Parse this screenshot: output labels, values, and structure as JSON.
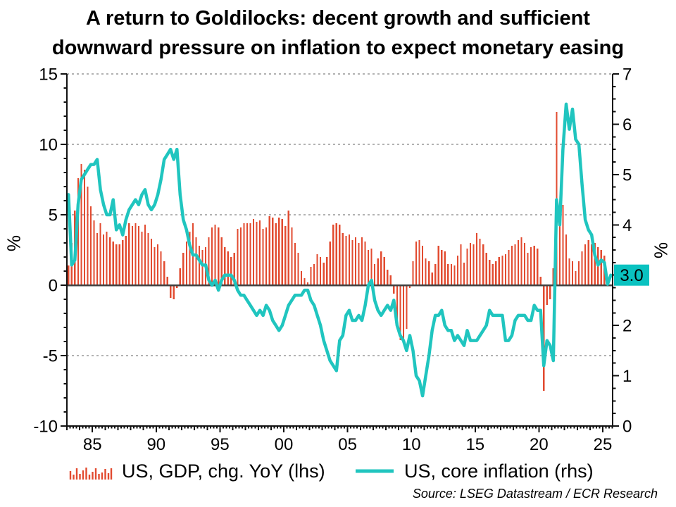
{
  "title": {
    "line1": "A return to Goldilocks: decent growth and sufficient",
    "line2": "downward pressure on inflation to expect monetary easing"
  },
  "source": "Source: LSEG Datastream / ECR Research",
  "colors": {
    "bars": "#e24b30",
    "line": "#20c5bf",
    "marker_box": "#0ac2c0",
    "marker_text": "#000000",
    "grid": "#b2b2b2",
    "zero_line": "#404040",
    "axis": "#111111",
    "text": "#000000"
  },
  "left_axis": {
    "label": "%",
    "range": [
      -10,
      15
    ],
    "major_ticks": [
      {
        "v": 15,
        "text": "15"
      },
      {
        "v": 10,
        "text": "10"
      },
      {
        "v": 5,
        "text": "5"
      },
      {
        "v": 0,
        "text": "0"
      },
      {
        "v": -5,
        "text": "-5"
      },
      {
        "v": -10,
        "text": "-10"
      }
    ],
    "minor_step": 1,
    "gridlines": [
      15,
      10,
      5,
      -5
    ]
  },
  "right_axis": {
    "label": "%",
    "range": [
      0,
      7
    ],
    "major_ticks": [
      {
        "v": 0,
        "text": "0"
      },
      {
        "v": 1,
        "text": "1"
      },
      {
        "v": 2,
        "text": "2"
      },
      {
        "v": 4,
        "text": "4"
      },
      {
        "v": 5,
        "text": "5"
      },
      {
        "v": 6,
        "text": "6"
      },
      {
        "v": 7,
        "text": "7"
      }
    ],
    "minor_step": 0.25,
    "marker": {
      "value": 3.0,
      "text": "3.0"
    }
  },
  "x_axis": {
    "range": [
      1983,
      2025.77
    ],
    "labels": [
      {
        "year": 1985,
        "text": "85"
      },
      {
        "year": 1990,
        "text": "90"
      },
      {
        "year": 1995,
        "text": "95"
      },
      {
        "year": 2000,
        "text": "00"
      },
      {
        "year": 2005,
        "text": "05"
      },
      {
        "year": 2010,
        "text": "10"
      },
      {
        "year": 2015,
        "text": "15"
      },
      {
        "year": 2020,
        "text": "20"
      },
      {
        "year": 2025,
        "text": "25"
      }
    ],
    "minor_step_years": 0.25
  },
  "legend": {
    "items": [
      {
        "label": "US, GDP, chg. YoY (lhs)",
        "swatch": "bars"
      },
      {
        "label": "US, core inflation (rhs)",
        "swatch": "line"
      }
    ]
  },
  "chart_data": {
    "type": "bar+line",
    "x_unit": "year (quarterly points, mid-quarter)",
    "series": [
      {
        "name": "US, GDP, chg. YoY (lhs)",
        "type": "bar",
        "axis": "left",
        "x_start": 1983.125,
        "x_step": 0.25,
        "values": [
          1.4,
          3.0,
          5.3,
          7.6,
          8.6,
          8.2,
          7.0,
          5.6,
          4.6,
          3.7,
          4.4,
          3.6,
          3.8,
          3.4,
          3.1,
          2.9,
          2.9,
          3.2,
          3.5,
          4.4,
          4.2,
          4.4,
          4.2,
          3.8,
          4.3,
          3.7,
          3.3,
          2.7,
          2.9,
          2.4,
          1.7,
          0.6,
          -0.9,
          -1.0,
          -0.2,
          1.2,
          2.3,
          3.1,
          3.8,
          4.4,
          3.4,
          2.8,
          2.5,
          2.7,
          3.4,
          4.1,
          4.3,
          4.1,
          3.4,
          2.7,
          2.4,
          2.0,
          2.3,
          4.0,
          4.1,
          4.4,
          4.4,
          4.4,
          4.7,
          4.5,
          4.6,
          4.0,
          4.1,
          4.9,
          4.8,
          4.4,
          4.8,
          4.7,
          4.2,
          5.3,
          4.1,
          3.0,
          2.3,
          1.0,
          0.5,
          0.2,
          1.3,
          1.5,
          2.2,
          2.0,
          1.6,
          2.0,
          3.1,
          4.3,
          4.4,
          4.3,
          3.7,
          3.5,
          3.6,
          3.2,
          3.4,
          3.0,
          3.4,
          3.1,
          2.5,
          2.6,
          1.5,
          1.9,
          2.4,
          2.0,
          1.1,
          0.7,
          -0.6,
          -2.5,
          -3.9,
          -4.0,
          -3.1,
          -0.2,
          1.7,
          3.1,
          3.2,
          2.8,
          1.9,
          1.7,
          0.9,
          1.5,
          2.8,
          2.5,
          2.4,
          1.5,
          1.5,
          1.4,
          2.1,
          2.9,
          1.6,
          2.6,
          3.0,
          2.9,
          3.7,
          3.3,
          2.9,
          2.3,
          1.8,
          1.5,
          1.7,
          2.0,
          2.1,
          2.2,
          2.5,
          2.8,
          2.9,
          3.2,
          3.4,
          3.0,
          2.3,
          2.7,
          2.8,
          2.6,
          0.6,
          -7.5,
          -1.4,
          -1.0,
          1.2,
          12.3,
          5.0,
          5.7,
          3.6,
          1.9,
          1.7,
          1.0,
          1.7,
          2.4,
          2.9,
          3.2,
          2.9,
          3.0,
          2.7,
          2.5,
          2.1
        ]
      },
      {
        "name": "US, core inflation (rhs)",
        "type": "line",
        "axis": "right",
        "x_start": 1983.125,
        "x_step": 0.25,
        "values": [
          4.6,
          3.2,
          3.3,
          4.4,
          4.9,
          5.0,
          5.1,
          5.2,
          5.2,
          5.3,
          4.7,
          4.4,
          4.2,
          4.2,
          4.5,
          3.9,
          4.0,
          3.8,
          4.1,
          4.3,
          4.4,
          4.5,
          4.4,
          4.6,
          4.7,
          4.4,
          4.3,
          4.4,
          4.6,
          4.9,
          5.3,
          5.4,
          5.5,
          5.3,
          5.5,
          4.6,
          4.1,
          3.9,
          3.6,
          3.4,
          3.4,
          3.3,
          3.2,
          3.2,
          2.9,
          2.8,
          2.9,
          2.7,
          2.9,
          3.0,
          3.0,
          3.0,
          2.9,
          2.7,
          2.6,
          2.6,
          2.5,
          2.4,
          2.3,
          2.2,
          2.3,
          2.2,
          2.4,
          2.3,
          2.1,
          2.0,
          1.9,
          2.0,
          2.2,
          2.4,
          2.5,
          2.6,
          2.6,
          2.6,
          2.7,
          2.7,
          2.5,
          2.4,
          2.2,
          2.0,
          1.7,
          1.5,
          1.3,
          1.2,
          1.1,
          1.7,
          1.8,
          2.2,
          2.3,
          2.1,
          2.1,
          2.2,
          2.1,
          2.4,
          2.8,
          2.9,
          2.5,
          2.3,
          2.2,
          2.3,
          2.4,
          2.3,
          2.5,
          2.0,
          1.8,
          1.7,
          1.5,
          1.8,
          1.5,
          1.0,
          0.9,
          0.6,
          1.0,
          1.4,
          1.9,
          2.2,
          2.2,
          2.3,
          2.0,
          1.9,
          1.9,
          1.7,
          1.8,
          1.7,
          1.6,
          1.9,
          1.7,
          1.7,
          1.7,
          1.8,
          1.9,
          2.0,
          2.3,
          2.2,
          2.2,
          2.2,
          2.2,
          1.7,
          1.7,
          1.8,
          2.1,
          2.2,
          2.2,
          2.2,
          2.1,
          2.1,
          2.4,
          2.3,
          2.3,
          1.2,
          1.7,
          1.6,
          1.3,
          4.5,
          4.0,
          5.5,
          6.4,
          5.9,
          6.3,
          5.7,
          5.6,
          4.8,
          4.1,
          3.9,
          3.8,
          3.4,
          3.2,
          3.3,
          3.25,
          2.82,
          3.0
        ]
      }
    ]
  }
}
